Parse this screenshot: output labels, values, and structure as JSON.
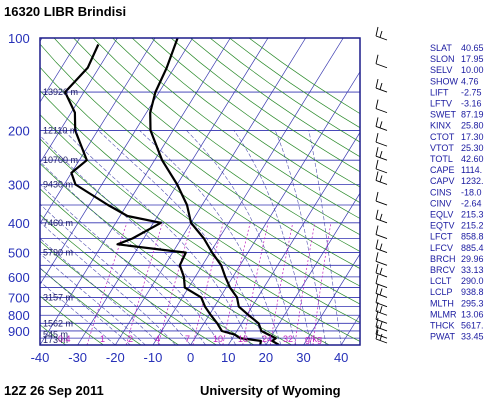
{
  "header": {
    "title": "16320 LIBR Brindisi"
  },
  "footer": {
    "date": "12Z 26 Sep 2011",
    "source": "University of Wyoming"
  },
  "colors": {
    "frame": "#1c1c8a",
    "isobar": "#3030b0",
    "isotherm": "#3a3ab0",
    "dry_adiabat": "#2a8a2a",
    "moist_adiabat": "#3030a0",
    "mixing_ratio": "#c020c0",
    "profile": "#000000",
    "text_blue": "#2630b8"
  },
  "chart_data": {
    "type": "line",
    "title": "16320 LIBR Brindisi",
    "xlabel": "",
    "ylabel": "",
    "x_axis": {
      "ticks": [
        -40,
        -30,
        -20,
        -10,
        0,
        10,
        20,
        30,
        40
      ],
      "range": [
        -40,
        45
      ]
    },
    "y_axis": {
      "scale": "log",
      "ticks": [
        100,
        200,
        300,
        400,
        500,
        600,
        700,
        800,
        900
      ],
      "range": [
        100,
        1000
      ],
      "reversed": true
    },
    "height_labels": [
      {
        "p": 150,
        "text": "13920 m"
      },
      {
        "p": 200,
        "text": "12110 m"
      },
      {
        "p": 250,
        "text": "10700 m"
      },
      {
        "p": 300,
        "text": "9430 m"
      },
      {
        "p": 400,
        "text": "7460 m"
      },
      {
        "p": 500,
        "text": "5790 m"
      },
      {
        "p": 700,
        "text": "3157 m"
      },
      {
        "p": 850,
        "text": "1562 m"
      },
      {
        "p": 925,
        "text": "545 m"
      },
      {
        "p": 965,
        "text": "173 m"
      }
    ],
    "mixing_ratio_labels": [
      "0.4",
      "1",
      "2",
      "4",
      "7",
      "10",
      "16",
      "24",
      "32",
      "g/kg"
    ],
    "series": [
      {
        "kind": "temperature",
        "points": [
          [
            1000,
            23.5
          ],
          [
            970,
            21
          ],
          [
            950,
            21.5
          ],
          [
            925,
            19
          ],
          [
            900,
            16.5
          ],
          [
            850,
            14.5
          ],
          [
            800,
            10.5
          ],
          [
            750,
            6.5
          ],
          [
            700,
            4.5
          ],
          [
            650,
            1
          ],
          [
            600,
            -2
          ],
          [
            550,
            -5
          ],
          [
            500,
            -9.5
          ],
          [
            450,
            -14
          ],
          [
            400,
            -20
          ],
          [
            350,
            -24
          ],
          [
            300,
            -30
          ],
          [
            250,
            -38
          ],
          [
            200,
            -46
          ],
          [
            175,
            -49
          ],
          [
            150,
            -51
          ],
          [
            125,
            -52
          ],
          [
            100,
            -54
          ]
        ]
      },
      {
        "kind": "dewpoint",
        "points": [
          [
            1000,
            18.5
          ],
          [
            970,
            18
          ],
          [
            950,
            12
          ],
          [
            925,
            10
          ],
          [
            900,
            6
          ],
          [
            850,
            3.5
          ],
          [
            800,
            0.5
          ],
          [
            750,
            -2.5
          ],
          [
            700,
            -5
          ],
          [
            650,
            -11
          ],
          [
            600,
            -13
          ],
          [
            550,
            -16
          ],
          [
            500,
            -16.5
          ],
          [
            470,
            -36
          ],
          [
            450,
            -33
          ],
          [
            400,
            -28
          ],
          [
            380,
            -38
          ],
          [
            350,
            -45
          ],
          [
            300,
            -57
          ],
          [
            275,
            -60
          ],
          [
            250,
            -58
          ],
          [
            200,
            -66
          ],
          [
            175,
            -69
          ],
          [
            150,
            -75
          ],
          [
            125,
            -73
          ],
          [
            105,
            -74
          ]
        ]
      }
    ],
    "wind_barbs": [
      {
        "p": 100
      },
      {
        "p": 125
      },
      {
        "p": 150
      },
      {
        "p": 175
      },
      {
        "p": 200
      },
      {
        "p": 225
      },
      {
        "p": 250
      },
      {
        "p": 275
      },
      {
        "p": 300
      },
      {
        "p": 350
      },
      {
        "p": 400
      },
      {
        "p": 450
      },
      {
        "p": 500
      },
      {
        "p": 550
      },
      {
        "p": 600
      },
      {
        "p": 650
      },
      {
        "p": 700
      },
      {
        "p": 750
      },
      {
        "p": 800
      },
      {
        "p": 850
      },
      {
        "p": 900
      },
      {
        "p": 950
      },
      {
        "p": 1000
      }
    ]
  },
  "indices": [
    {
      "name": "SLAT",
      "value": "40.65"
    },
    {
      "name": "SLON",
      "value": "17.95"
    },
    {
      "name": "SELV",
      "value": "10.00"
    },
    {
      "name": "SHOW",
      "value": "4.76"
    },
    {
      "name": "LIFT",
      "value": "-2.75"
    },
    {
      "name": "LFTV",
      "value": "-3.16"
    },
    {
      "name": "SWET",
      "value": "87.19"
    },
    {
      "name": "KINX",
      "value": "25.80"
    },
    {
      "name": "CTOT",
      "value": "17.30"
    },
    {
      "name": "VTOT",
      "value": "25.30"
    },
    {
      "name": "TOTL",
      "value": "42.60"
    },
    {
      "name": "CAPE",
      "value": "1114."
    },
    {
      "name": "CAPV",
      "value": "1232."
    },
    {
      "name": "CINS",
      "value": "-18.0"
    },
    {
      "name": "CINV",
      "value": "-2.64"
    },
    {
      "name": "EQLV",
      "value": "215.3"
    },
    {
      "name": "EQTV",
      "value": "215.2"
    },
    {
      "name": "LFCT",
      "value": "858.8"
    },
    {
      "name": "LFCV",
      "value": "885.4"
    },
    {
      "name": "BRCH",
      "value": "29.96"
    },
    {
      "name": "BRCV",
      "value": "33.13"
    },
    {
      "name": "LCLT",
      "value": "290.0"
    },
    {
      "name": "LCLP",
      "value": "938.8"
    },
    {
      "name": "MLTH",
      "value": "295.3"
    },
    {
      "name": "MLMR",
      "value": "13.06"
    },
    {
      "name": "THCK",
      "value": "5617."
    },
    {
      "name": "PWAT",
      "value": "33.45"
    }
  ]
}
